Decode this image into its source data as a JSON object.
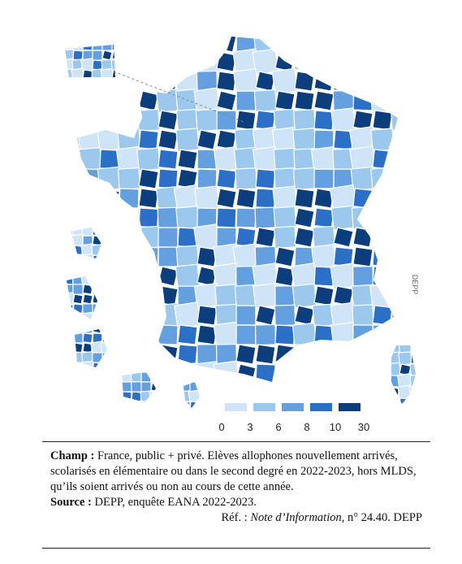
{
  "map": {
    "legend": {
      "breaks": [
        0,
        3,
        6,
        8,
        10,
        30
      ],
      "colors": [
        "#cfe4f7",
        "#9dc8ee",
        "#649fe0",
        "#2b6fc6",
        "#0c3d7c"
      ]
    },
    "watermark": "DEPP"
  },
  "note": {
    "champ_label": "Champ :",
    "champ_text": "France, public + privé. Elèves allophones nouvellement arrivés, scolarisés en élémentaire ou dans le second degré en 2022-2023, hors MLDS, qu’ils soient arrivés ou non au cours de cette année.",
    "source_label": "Source :",
    "source_text": "DEPP, enquête EANA 2022-2023.",
    "ref_label": "Réf. :",
    "ref_title": "Note d’Information",
    "ref_rest": ", n° 24.40. DEPP"
  }
}
